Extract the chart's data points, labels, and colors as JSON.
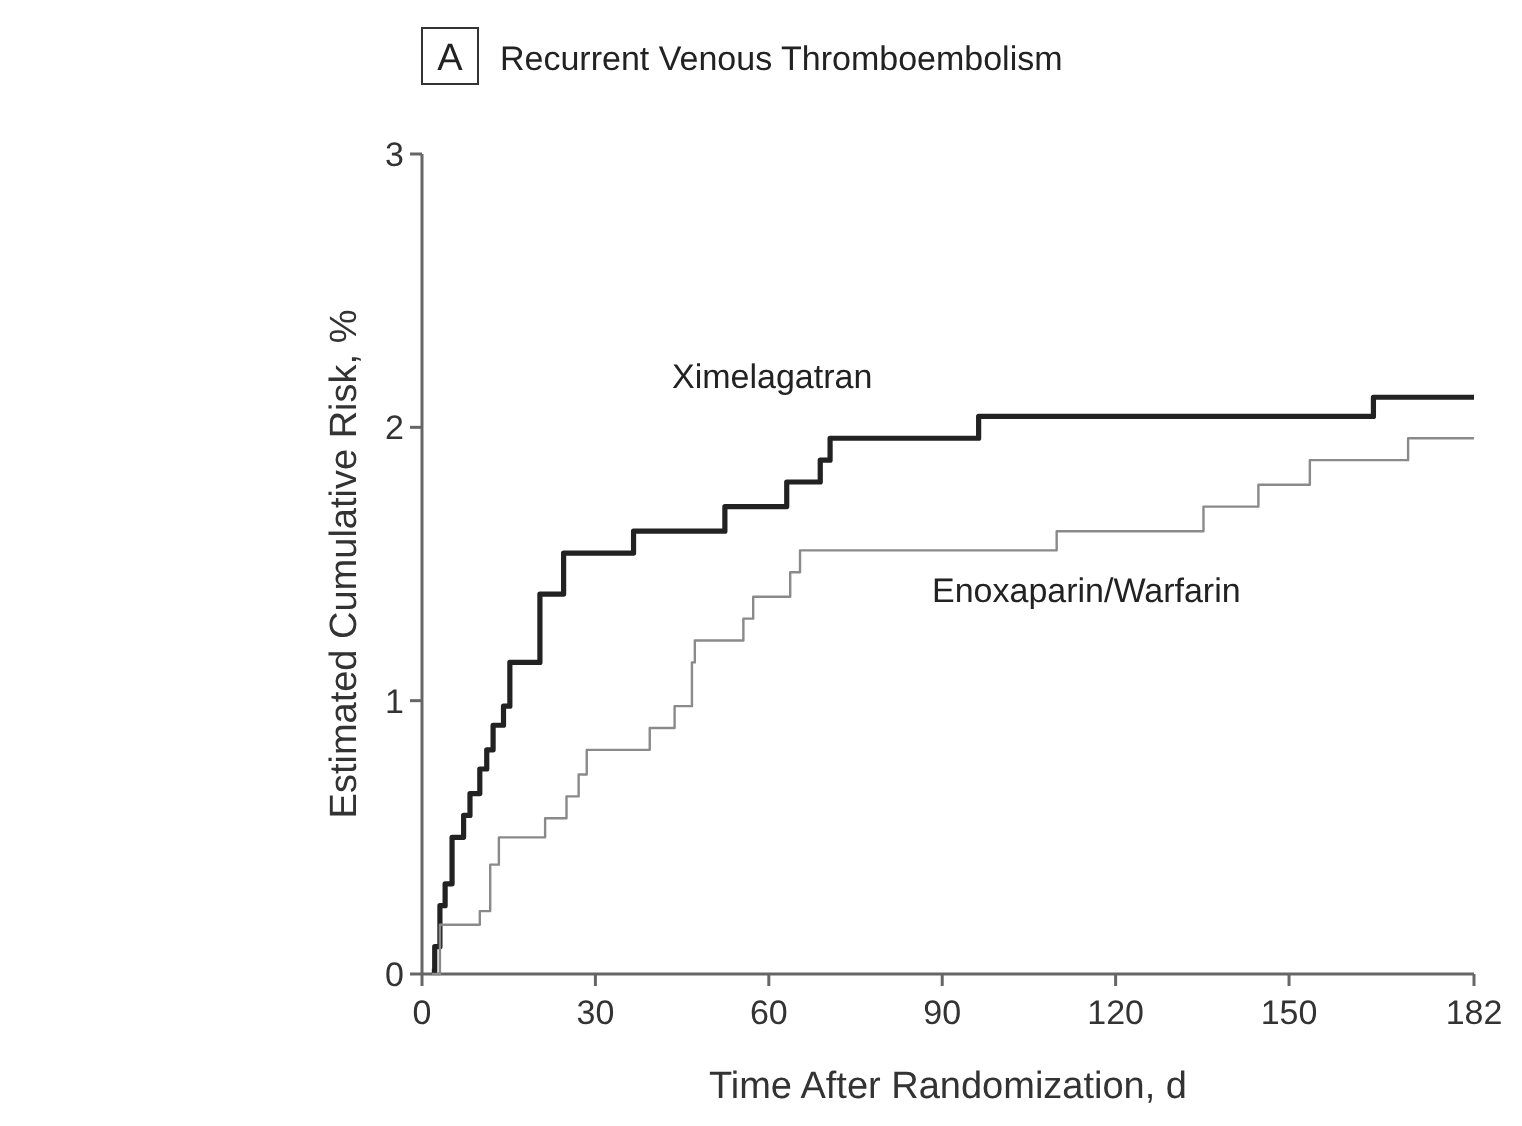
{
  "chart_data": {
    "type": "step",
    "title": "Recurrent Venous Thromboembolism",
    "annotations": [
      "A"
    ],
    "xlabel": "Time After Randomization, d",
    "ylabel": "Estimated Cumulative Risk, %",
    "xlim": [
      0,
      182
    ],
    "ylim": [
      0,
      3
    ],
    "xticks": [
      0,
      30,
      60,
      90,
      120,
      150,
      182
    ],
    "yticks": [
      0,
      1,
      2,
      3
    ],
    "grid": false,
    "marker": "none",
    "series": [
      {
        "name": "Ximelagatran",
        "color": "#222222",
        "x": [
          1.7,
          2.2,
          3.1,
          4,
          5.2,
          7.2,
          8.3,
          10,
          11.2,
          12.3,
          14.1,
          15.2,
          20.4,
          24.5,
          36.6,
          52.4,
          63.1,
          68.9,
          70.6,
          96.3,
          164.6,
          182
        ],
        "values": [
          0.01,
          0.1,
          0.25,
          0.33,
          0.5,
          0.58,
          0.66,
          0.75,
          0.82,
          0.91,
          0.98,
          1.14,
          1.39,
          1.54,
          1.62,
          1.71,
          1.8,
          1.88,
          1.96,
          2.04,
          2.11,
          2.11
        ]
      },
      {
        "name": "Enoxaparin/Warfarin",
        "color": "#8a8a8a",
        "x": [
          1.7,
          3.1,
          10,
          11.8,
          13.3,
          21.3,
          25,
          27.1,
          28.5,
          39.4,
          43.7,
          46.7,
          47.2,
          55.6,
          57.3,
          63.7,
          65.4,
          109.8,
          135.2,
          144.7,
          153.6,
          170.6,
          182
        ],
        "values": [
          0,
          0.18,
          0.23,
          0.4,
          0.5,
          0.57,
          0.65,
          0.73,
          0.82,
          0.9,
          0.98,
          1.14,
          1.22,
          1.3,
          1.38,
          1.47,
          1.55,
          1.62,
          1.71,
          1.79,
          1.88,
          1.96,
          1.96
        ]
      }
    ]
  }
}
